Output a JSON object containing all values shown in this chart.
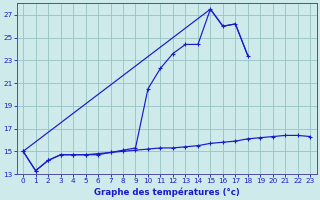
{
  "xlabel": "Graphe des températures (°c)",
  "xlim": [
    -0.5,
    23.5
  ],
  "ylim": [
    13,
    28
  ],
  "yticks": [
    13,
    15,
    17,
    19,
    21,
    23,
    25,
    27
  ],
  "xticks": [
    0,
    1,
    2,
    3,
    4,
    5,
    6,
    7,
    8,
    9,
    10,
    11,
    12,
    13,
    14,
    15,
    16,
    17,
    18,
    19,
    20,
    21,
    22,
    23
  ],
  "background_color": "#ceeaea",
  "grid_color": "#9ec8c8",
  "line_color": "#1a1acc",
  "curve1_x": [
    0,
    1,
    2,
    3,
    4,
    5,
    6,
    7,
    8,
    9,
    10,
    11,
    12,
    13,
    14,
    15,
    16,
    17,
    18
  ],
  "curve1_y": [
    15.0,
    13.3,
    14.2,
    14.7,
    14.7,
    14.7,
    14.8,
    14.9,
    15.1,
    15.3,
    20.5,
    22.3,
    23.6,
    24.4,
    24.4,
    27.5,
    26.0,
    26.2,
    23.4
  ],
  "curve2_x": [
    0,
    1,
    2,
    3,
    4,
    5,
    6,
    7,
    8,
    9,
    10,
    11,
    12,
    13,
    14,
    15,
    16,
    17,
    18,
    19,
    20,
    21,
    22,
    23
  ],
  "curve2_y": [
    15.0,
    13.3,
    14.2,
    14.7,
    14.7,
    14.7,
    14.7,
    14.9,
    15.0,
    15.1,
    15.2,
    15.3,
    15.3,
    15.4,
    15.5,
    15.7,
    15.8,
    15.9,
    16.1,
    16.2,
    16.3,
    16.4,
    16.4,
    16.3
  ],
  "curve3_x": [
    0,
    15,
    16,
    17,
    18
  ],
  "curve3_y": [
    15.0,
    27.5,
    26.0,
    26.2,
    23.4
  ]
}
